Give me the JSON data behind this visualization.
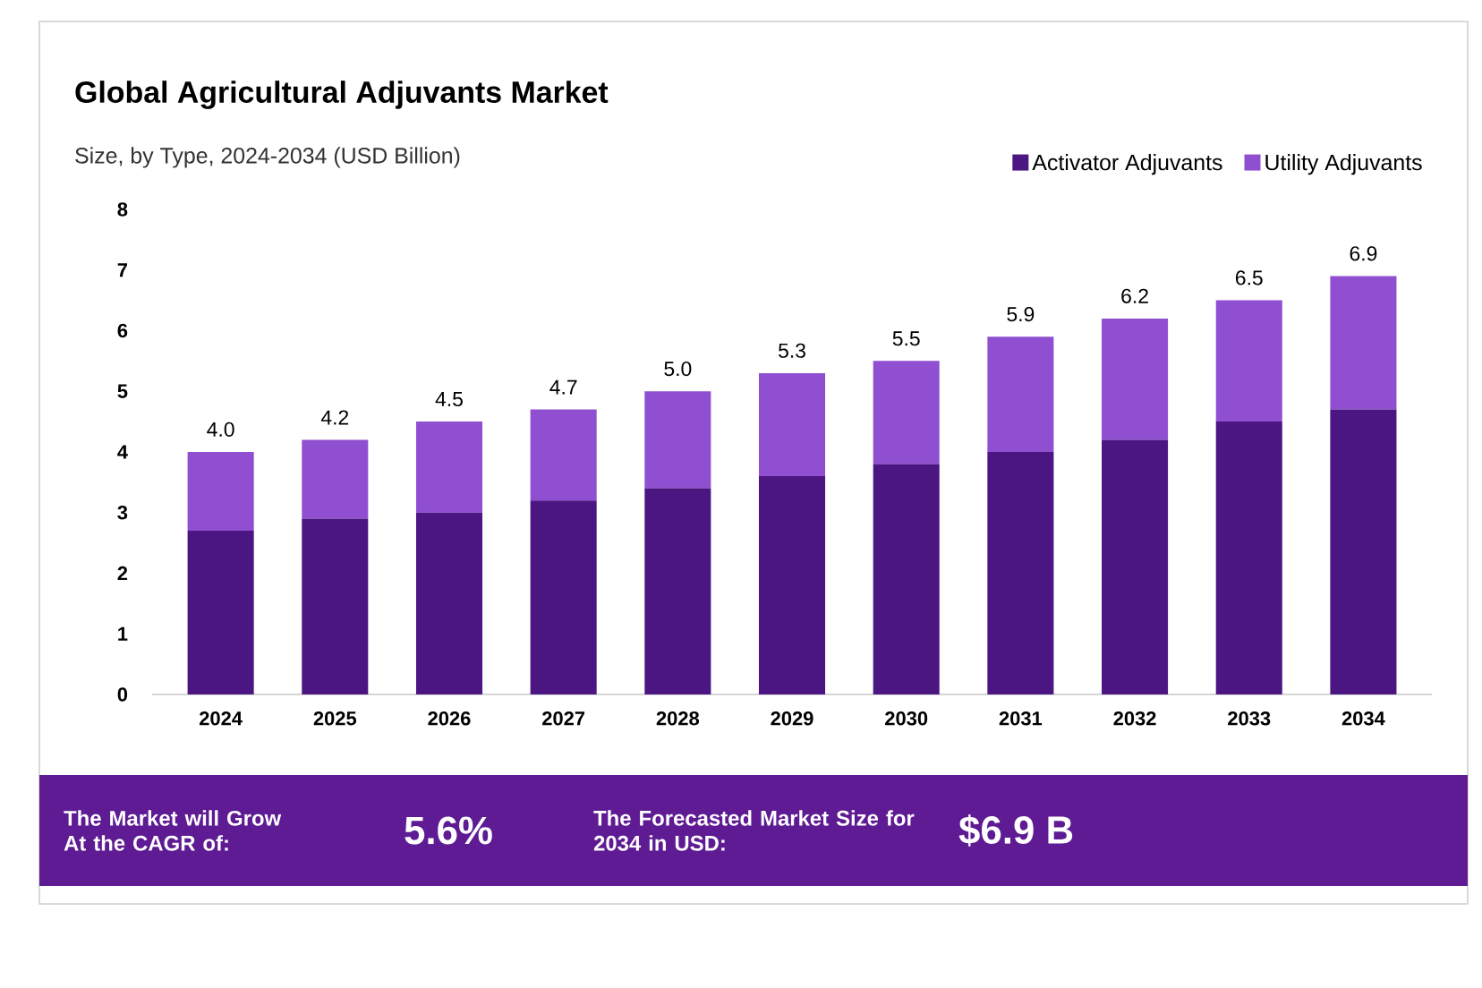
{
  "chart_data": {
    "type": "bar",
    "stacked": true,
    "title": "Global Agricultural Adjuvants Market",
    "subtitle": "Size, by Type, 2024-2034 (USD Billion)",
    "categories": [
      "2024",
      "2025",
      "2026",
      "2027",
      "2028",
      "2029",
      "2030",
      "2031",
      "2032",
      "2033",
      "2034"
    ],
    "series": [
      {
        "name": "Activator Adjuvants",
        "color": "#4b1682",
        "values": [
          2.7,
          2.9,
          3.0,
          3.2,
          3.4,
          3.6,
          3.8,
          4.0,
          4.2,
          4.5,
          4.7
        ]
      },
      {
        "name": "Utility Adjuvants",
        "color": "#8f4fd0",
        "values": [
          1.3,
          1.3,
          1.5,
          1.5,
          1.6,
          1.7,
          1.7,
          1.9,
          2.0,
          2.0,
          2.2
        ]
      }
    ],
    "totals": [
      "4.0",
      "4.2",
      "4.5",
      "4.7",
      "5.0",
      "5.3",
      "5.5",
      "5.9",
      "6.2",
      "6.5",
      "6.9"
    ],
    "ylim": [
      0,
      8
    ],
    "yticks": [
      0,
      1,
      2,
      3,
      4,
      5,
      6,
      7,
      8
    ],
    "legend": "top right",
    "annotations": [
      "The Market will Grow At the CAGR of:",
      "5.6%",
      "The Forecasted Market Size for 2034 in USD:",
      "$6.9 B"
    ]
  }
}
